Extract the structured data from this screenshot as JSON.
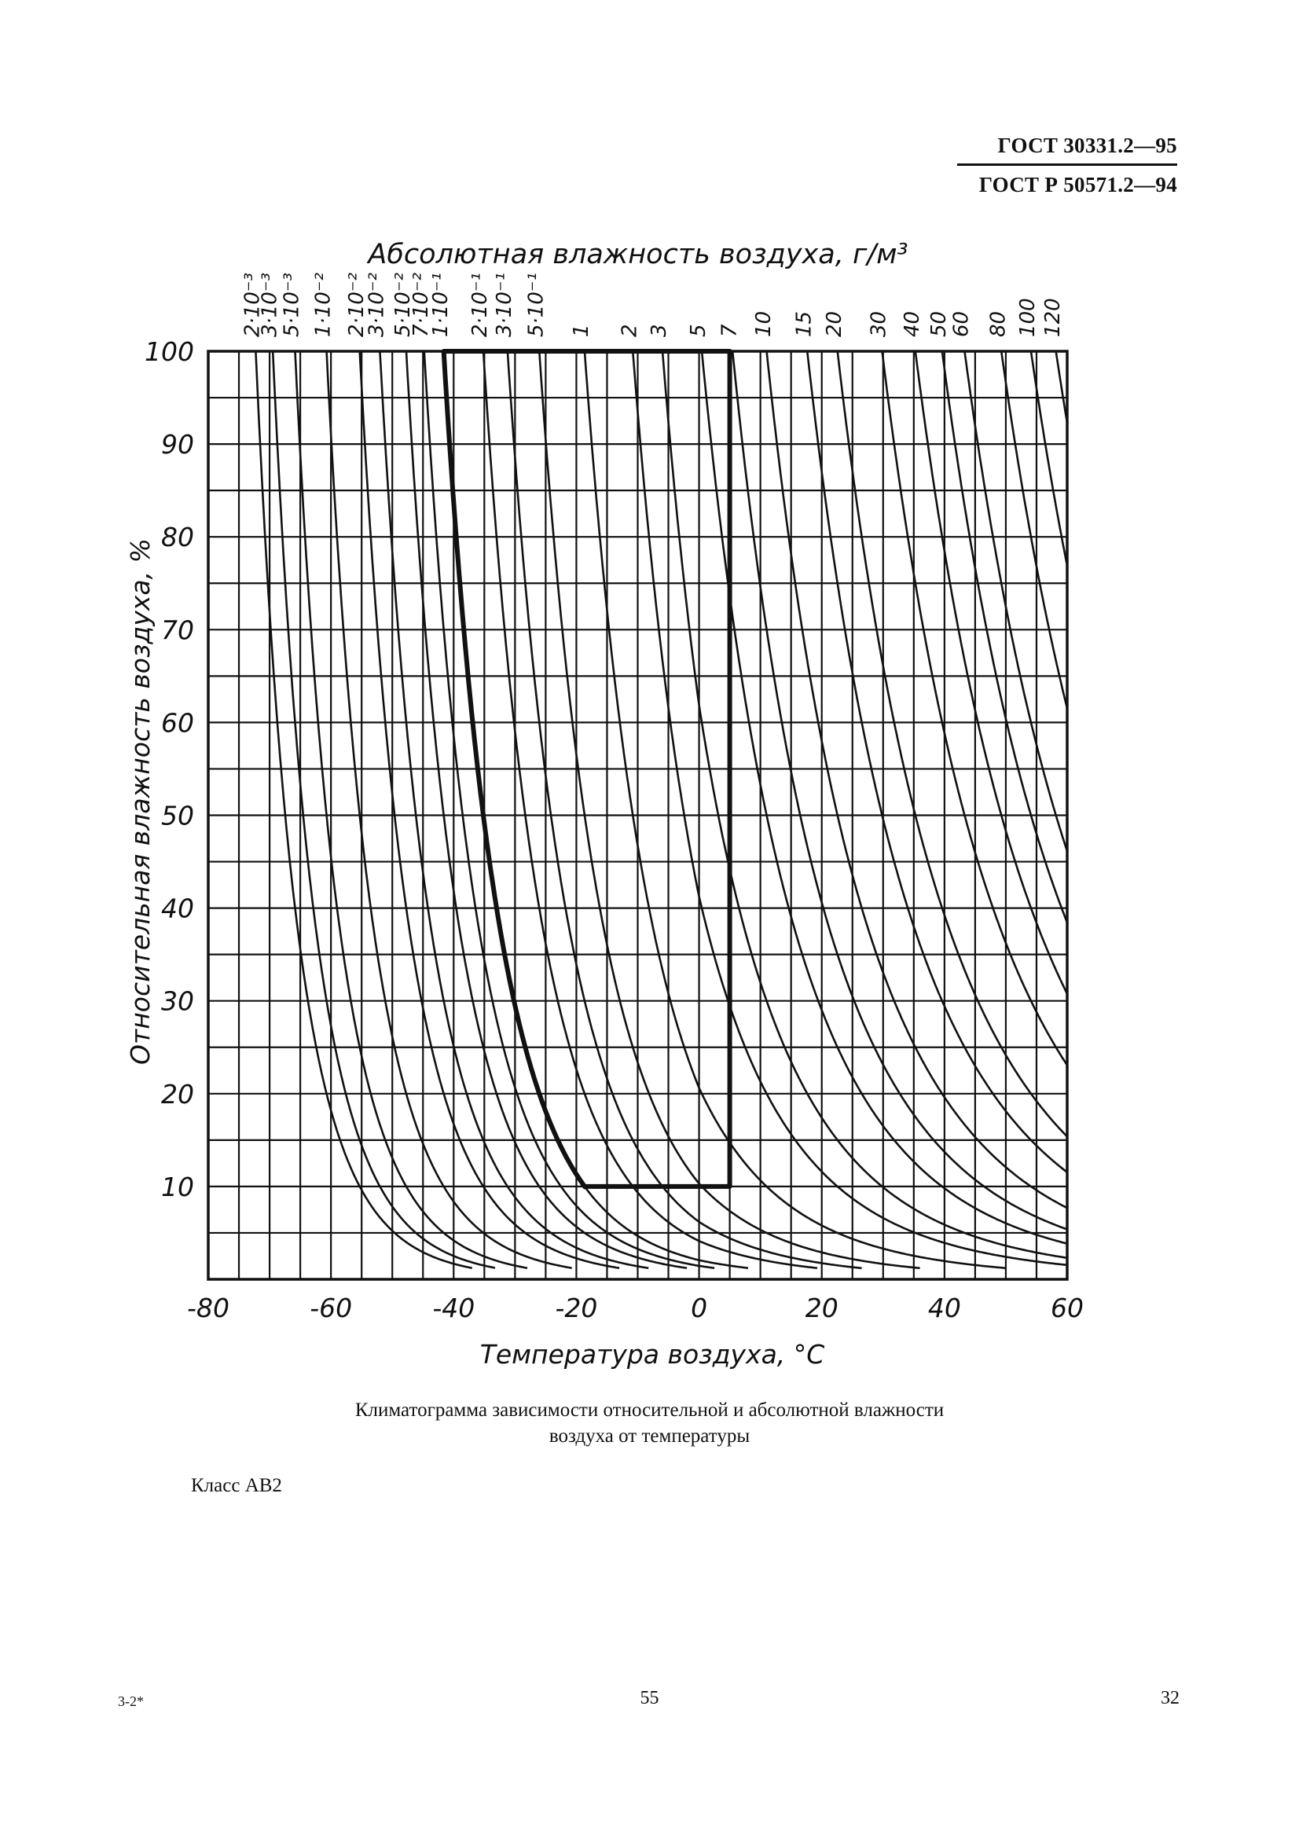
{
  "header": {
    "standard_1": "ГОСТ 30331.2—95",
    "standard_2": "ГОСТ Р 50571.2—94"
  },
  "chart_data": {
    "type": "line",
    "title": "Абсолютная влажность воздуха, г/м³",
    "xlabel": "Температура воздуха, °С",
    "ylabel": "Относительная влажность воздуха, %",
    "xlim": [
      -80,
      60
    ],
    "ylim": [
      0,
      100
    ],
    "x_ticks": [
      "-80",
      "-60",
      "-40",
      "-20",
      "0",
      "20",
      "40",
      "60"
    ],
    "x_tick_values": [
      -80,
      -60,
      -40,
      -20,
      0,
      20,
      40,
      60
    ],
    "y_ticks": [
      "10",
      "20",
      "30",
      "40",
      "50",
      "60",
      "70",
      "80",
      "90",
      "100"
    ],
    "y_tick_values": [
      10,
      20,
      30,
      40,
      50,
      60,
      70,
      80,
      90,
      100
    ],
    "x_grid_step": 5,
    "y_grid_step": 5,
    "grid": true,
    "series": [
      {
        "label": "2·10⁻³",
        "value": 0.002
      },
      {
        "label": "3·10⁻³",
        "value": 0.003
      },
      {
        "label": "5·10⁻³",
        "value": 0.005
      },
      {
        "label": "1·10⁻²",
        "value": 0.01
      },
      {
        "label": "2·10⁻²",
        "value": 0.02
      },
      {
        "label": "3·10⁻²",
        "value": 0.03
      },
      {
        "label": "5·10⁻²",
        "value": 0.05
      },
      {
        "label": "7·10⁻²",
        "value": 0.07
      },
      {
        "label": "1·10⁻¹",
        "value": 0.1
      },
      {
        "label": "2·10⁻¹",
        "value": 0.2
      },
      {
        "label": "3·10⁻¹",
        "value": 0.3
      },
      {
        "label": "5·10⁻¹",
        "value": 0.5
      },
      {
        "label": "1",
        "value": 1
      },
      {
        "label": "2",
        "value": 2
      },
      {
        "label": "3",
        "value": 3
      },
      {
        "label": "5",
        "value": 5
      },
      {
        "label": "7",
        "value": 7
      },
      {
        "label": "10",
        "value": 10
      },
      {
        "label": "15",
        "value": 15
      },
      {
        "label": "20",
        "value": 20
      },
      {
        "label": "30",
        "value": 30
      },
      {
        "label": "40",
        "value": 40
      },
      {
        "label": "50",
        "value": 50
      },
      {
        "label": "60",
        "value": 60
      },
      {
        "label": "80",
        "value": 80
      },
      {
        "label": "100",
        "value": 100
      },
      {
        "label": "120",
        "value": 120
      }
    ],
    "class_region": {
      "t_min": -40,
      "t_max": 5,
      "rh_min": 10,
      "rh_max": 100,
      "abs_min": 0.1,
      "abs_max": 7
    }
  },
  "caption": {
    "line_1": "Климатограмма зависимости относительной и абсолютной влажности",
    "line_2": "воздуха от температуры"
  },
  "class_label": "Класс АВ2",
  "footer": {
    "left": "3-2*",
    "center": "55",
    "right": "32"
  }
}
